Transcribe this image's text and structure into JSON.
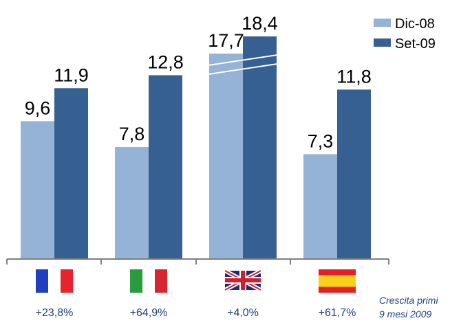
{
  "chart_data": {
    "type": "bar",
    "categories": [
      "France",
      "Italy",
      "United Kingdom",
      "Spain"
    ],
    "category_icons": [
      "france-flag-icon",
      "italy-flag-icon",
      "uk-flag-icon",
      "spain-flag-icon"
    ],
    "series": [
      {
        "name": "Dic-08",
        "values": [
          9.6,
          7.8,
          17.7,
          7.3
        ],
        "labels": [
          "9,6",
          "7,8",
          "17,7",
          "7,3"
        ],
        "color": "#95b3d7"
      },
      {
        "name": "Set-09",
        "values": [
          11.9,
          12.8,
          18.4,
          11.8
        ],
        "labels": [
          "11,9",
          "12,8",
          "18,4",
          "11,8"
        ],
        "color": "#366092"
      }
    ],
    "growth": [
      "+23,8%",
      "+64,9%",
      "+4,0%",
      "+61,7%"
    ],
    "growth_note": [
      "Crescita primi",
      "9 mesi 2009"
    ],
    "axis_break_category": 2,
    "legend_position": "top-right",
    "title": "",
    "xlabel": "",
    "ylabel": ""
  }
}
